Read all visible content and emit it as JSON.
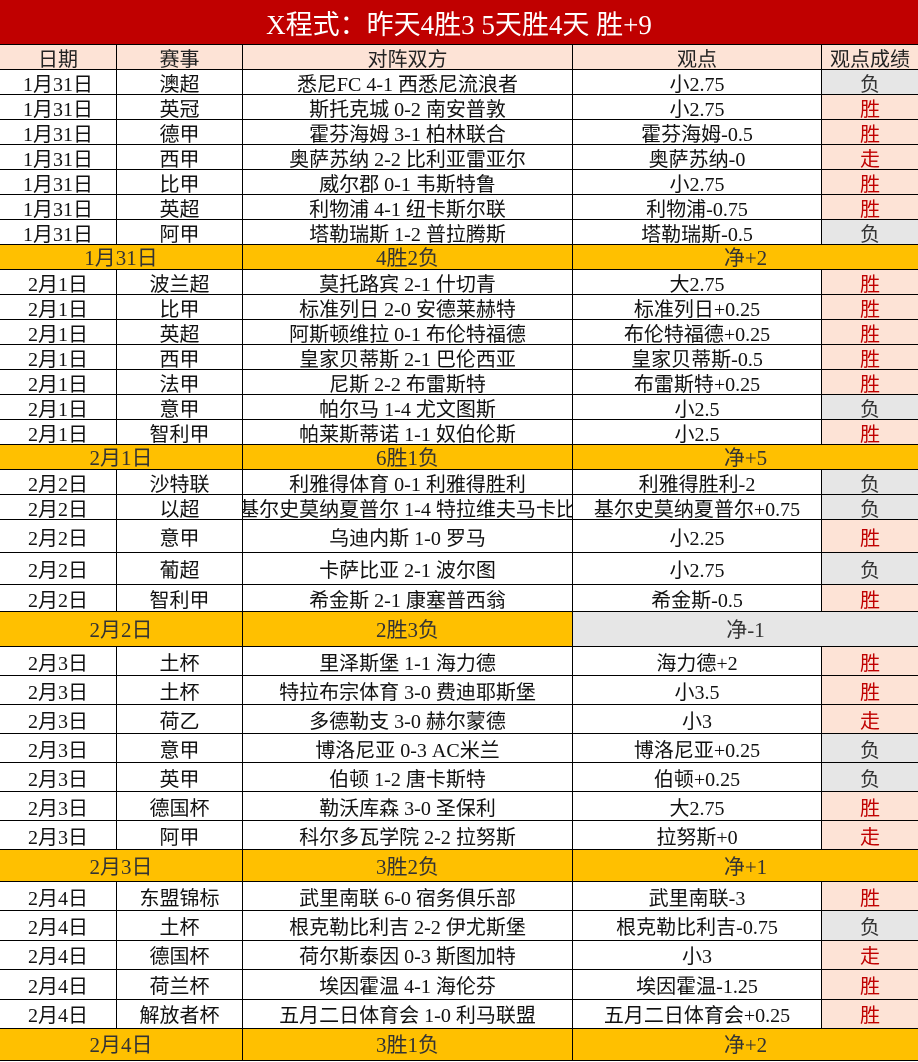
{
  "title": "X程式：昨天4胜3 5天胜4天 胜+9",
  "headers": [
    "日期",
    "赛事",
    "对阵双方",
    "观点",
    "观点成绩"
  ],
  "colors": {
    "title_bg": "#c00000",
    "header_bg": "#fde3d6",
    "summary_bg": "#ffc000",
    "win_text": "#c00000",
    "win_bg": "#fde3d6",
    "lose_bg": "#e6e6e6"
  },
  "sections": [
    {
      "rows": [
        {
          "date": "1月31日",
          "league": "澳超",
          "match": "悉尼FC 4-1 西悉尼流浪者",
          "pick": "小2.75",
          "result": "负"
        },
        {
          "date": "1月31日",
          "league": "英冠",
          "match": "斯托克城 0-2 南安普敦",
          "pick": "小2.75",
          "result": "胜"
        },
        {
          "date": "1月31日",
          "league": "德甲",
          "match": "霍芬海姆 3-1 柏林联合",
          "pick": "霍芬海姆-0.5",
          "result": "胜"
        },
        {
          "date": "1月31日",
          "league": "西甲",
          "match": "奥萨苏纳 2-2 比利亚雷亚尔",
          "pick": "奥萨苏纳-0",
          "result": "走"
        },
        {
          "date": "1月31日",
          "league": "比甲",
          "match": "威尔郡 0-1 韦斯特鲁",
          "pick": "小2.75",
          "result": "胜"
        },
        {
          "date": "1月31日",
          "league": "英超",
          "match": "利物浦 4-1 纽卡斯尔联",
          "pick": "利物浦-0.75",
          "result": "胜"
        },
        {
          "date": "1月31日",
          "league": "阿甲",
          "match": "塔勒瑞斯 1-2 普拉腾斯",
          "pick": "塔勒瑞斯-0.5",
          "result": "负"
        }
      ],
      "summary": {
        "date": "1月31日",
        "record": "4胜2负",
        "net": "净+2",
        "net_bg": "#ffc000"
      }
    },
    {
      "rows": [
        {
          "date": "2月1日",
          "league": "波兰超",
          "match": "莫托路宾 2-1 什切青",
          "pick": "大2.75",
          "result": "胜"
        },
        {
          "date": "2月1日",
          "league": "比甲",
          "match": "标准列日 2-0 安德莱赫特",
          "pick": "标准列日+0.25",
          "result": "胜"
        },
        {
          "date": "2月1日",
          "league": "英超",
          "match": "阿斯顿维拉 0-1 布伦特福德",
          "pick": "布伦特福德+0.25",
          "result": "胜"
        },
        {
          "date": "2月1日",
          "league": "西甲",
          "match": "皇家贝蒂斯 2-1 巴伦西亚",
          "pick": "皇家贝蒂斯-0.5",
          "result": "胜"
        },
        {
          "date": "2月1日",
          "league": "法甲",
          "match": "尼斯 2-2 布雷斯特",
          "pick": "布雷斯特+0.25",
          "result": "胜"
        },
        {
          "date": "2月1日",
          "league": "意甲",
          "match": "帕尔马 1-4 尤文图斯",
          "pick": "小2.5",
          "result": "负"
        },
        {
          "date": "2月1日",
          "league": "智利甲",
          "match": "帕莱斯蒂诺 1-1 奴伯伦斯",
          "pick": "小2.5",
          "result": "胜"
        }
      ],
      "summary": {
        "date": "2月1日",
        "record": "6胜1负",
        "net": "净+5",
        "net_bg": "#ffc000"
      }
    },
    {
      "rows": [
        {
          "date": "2月2日",
          "league": "沙特联",
          "match": "利雅得体育 0-1 利雅得胜利",
          "pick": "利雅得胜利-2",
          "result": "负"
        },
        {
          "date": "2月2日",
          "league": "以超",
          "match": "基尔史莫纳夏普尔 1-4 特拉维夫马卡比",
          "pick": "基尔史莫纳夏普尔+0.75",
          "result": "负"
        },
        {
          "date": "2月2日",
          "league": "意甲",
          "match": "乌迪内斯 1-0 罗马",
          "pick": "小2.25",
          "result": "胜"
        },
        {
          "date": "2月2日",
          "league": "葡超",
          "match": "卡萨比亚 2-1 波尔图",
          "pick": "小2.75",
          "result": "负"
        },
        {
          "date": "2月2日",
          "league": "智利甲",
          "match": "希金斯 2-1 康塞普西翁",
          "pick": "希金斯-0.5",
          "result": "胜"
        }
      ],
      "summary": {
        "date": "2月2日",
        "record": "2胜3负",
        "net": "净-1",
        "net_bg": "#e6e6e6"
      }
    },
    {
      "rows": [
        {
          "date": "2月3日",
          "league": "土杯",
          "match": "里泽斯堡 1-1 海力德",
          "pick": "海力德+2",
          "result": "胜"
        },
        {
          "date": "2月3日",
          "league": "土杯",
          "match": "特拉布宗体育 3-0 费迪耶斯堡",
          "pick": "小3.5",
          "result": "胜"
        },
        {
          "date": "2月3日",
          "league": "荷乙",
          "match": "多德勒支 3-0 赫尔蒙德",
          "pick": "小3",
          "result": "走"
        },
        {
          "date": "2月3日",
          "league": "意甲",
          "match": "博洛尼亚 0-3 AC米兰",
          "pick": "博洛尼亚+0.25",
          "result": "负"
        },
        {
          "date": "2月3日",
          "league": "英甲",
          "match": "伯顿 1-2 唐卡斯特",
          "pick": "伯顿+0.25",
          "result": "负"
        },
        {
          "date": "2月3日",
          "league": "德国杯",
          "match": "勒沃库森 3-0 圣保利",
          "pick": "大2.75",
          "result": "胜"
        },
        {
          "date": "2月3日",
          "league": "阿甲",
          "match": "科尔多瓦学院 2-2 拉努斯",
          "pick": "拉努斯+0",
          "result": "走"
        }
      ],
      "summary": {
        "date": "2月3日",
        "record": "3胜2负",
        "net": "净+1",
        "net_bg": "#ffc000"
      }
    },
    {
      "rows": [
        {
          "date": "2月4日",
          "league": "东盟锦标",
          "match": "武里南联 6-0 宿务俱乐部",
          "pick": "武里南联-3",
          "result": "胜"
        },
        {
          "date": "2月4日",
          "league": "土杯",
          "match": "根克勒比利吉 2-2 伊尤斯堡",
          "pick": "根克勒比利吉-0.75",
          "result": "负"
        },
        {
          "date": "2月4日",
          "league": "德国杯",
          "match": "荷尔斯泰因 0-3 斯图加特",
          "pick": "小3",
          "result": "走"
        },
        {
          "date": "2月4日",
          "league": "荷兰杯",
          "match": "埃因霍温 4-1 海伦芬",
          "pick": "埃因霍温-1.25",
          "result": "胜"
        },
        {
          "date": "2月4日",
          "league": "解放者杯",
          "match": "五月二日体育会 1-0 利马联盟",
          "pick": "五月二日体育会+0.25",
          "result": "胜"
        }
      ],
      "summary": {
        "date": "2月4日",
        "record": "3胜1负",
        "net": "净+2",
        "net_bg": "#ffc000"
      }
    }
  ]
}
